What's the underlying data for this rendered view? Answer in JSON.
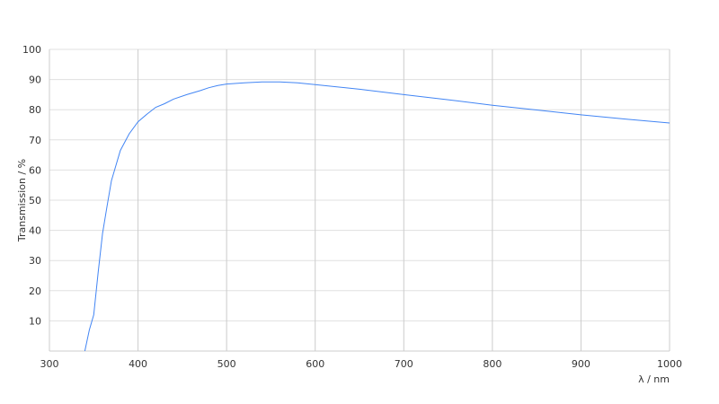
{
  "chart_data": {
    "type": "line",
    "title": "",
    "xlabel": "λ / nm",
    "ylabel": "Transmission / %",
    "xlim": [
      300,
      1000
    ],
    "ylim": [
      0,
      100
    ],
    "xticks": [
      300,
      400,
      500,
      600,
      700,
      800,
      900,
      1000
    ],
    "yticks": [
      10,
      20,
      30,
      40,
      50,
      60,
      70,
      80,
      90,
      100
    ],
    "grid": true,
    "line_color": "#4285f4",
    "series": [
      {
        "x": [
          340,
          345,
          350,
          355,
          360,
          365,
          370,
          380,
          390,
          400,
          410,
          420,
          430,
          440,
          455,
          470,
          480,
          490,
          500,
          520,
          540,
          560,
          580,
          600,
          650,
          700,
          750,
          800,
          850,
          900,
          950,
          1000
        ],
        "y": [
          0,
          7,
          12,
          26,
          39,
          48,
          56.5,
          66.5,
          72,
          76,
          78.5,
          80.8,
          82,
          83.5,
          85,
          86.3,
          87.3,
          88,
          88.5,
          88.9,
          89.2,
          89.2,
          88.9,
          88.3,
          86.8,
          85,
          83.3,
          81.5,
          79.9,
          78.3,
          76.9,
          75.6
        ]
      }
    ]
  }
}
